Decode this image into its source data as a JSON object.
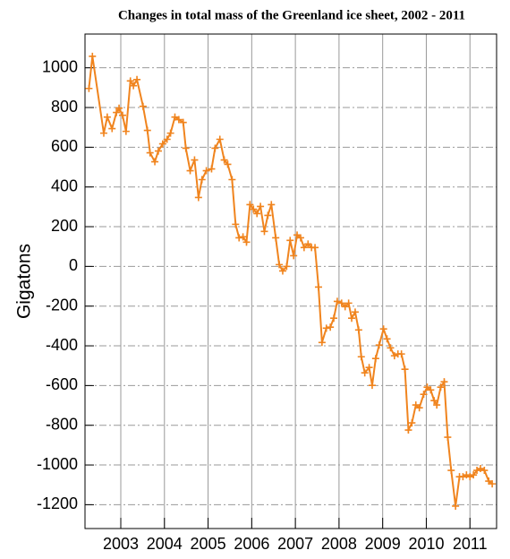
{
  "chart_data": {
    "type": "line",
    "title": "Changes in total mass of the Greenland ice sheet, 2002 - 2011",
    "y_label": "Gigatons",
    "color": "#f0841e",
    "x": [
      2002.27,
      2002.35,
      2002.61,
      2002.69,
      2002.8,
      2002.9,
      2002.96,
      2003.04,
      2003.12,
      2003.22,
      2003.29,
      2003.37,
      2003.51,
      2003.61,
      2003.67,
      2003.78,
      2003.86,
      2003.96,
      2004.06,
      2004.14,
      2004.24,
      2004.33,
      2004.43,
      2004.49,
      2004.59,
      2004.69,
      2004.78,
      2004.86,
      2004.96,
      2005.08,
      2005.16,
      2005.27,
      2005.37,
      2005.45,
      2005.55,
      2005.63,
      2005.71,
      2005.8,
      2005.88,
      2005.96,
      2006.04,
      2006.12,
      2006.2,
      2006.29,
      2006.37,
      2006.45,
      2006.55,
      2006.63,
      2006.71,
      2006.8,
      2006.88,
      2006.96,
      2007.04,
      2007.12,
      2007.2,
      2007.29,
      2007.37,
      2007.45,
      2007.53,
      2007.61,
      2007.71,
      2007.8,
      2007.88,
      2007.96,
      2008.06,
      2008.14,
      2008.22,
      2008.29,
      2008.37,
      2008.45,
      2008.51,
      2008.59,
      2008.69,
      2008.76,
      2008.84,
      2008.92,
      2009.02,
      2009.1,
      2009.18,
      2009.27,
      2009.35,
      2009.43,
      2009.51,
      2009.59,
      2009.67,
      2009.76,
      2009.84,
      2009.94,
      2010.02,
      2010.1,
      2010.18,
      2010.24,
      2010.33,
      2010.41,
      2010.49,
      2010.57,
      2010.67,
      2010.76,
      2010.84,
      2010.92,
      2011.0,
      2011.08,
      2011.16,
      2011.24,
      2011.33,
      2011.43,
      2011.51
    ],
    "values": [
      896,
      1058,
      671,
      752,
      694,
      775,
      797,
      761,
      680,
      934,
      910,
      941,
      806,
      685,
      572,
      527,
      581,
      617,
      640,
      671,
      752,
      739,
      725,
      595,
      482,
      536,
      347,
      437,
      482,
      491,
      595,
      640,
      536,
      514,
      437,
      212,
      144,
      149,
      122,
      311,
      288,
      266,
      302,
      176,
      257,
      311,
      144,
      9,
      -23,
      0,
      131,
      54,
      158,
      144,
      95,
      113,
      95,
      95,
      -104,
      -383,
      -311,
      -306,
      -261,
      -176,
      -185,
      -203,
      -185,
      -261,
      -230,
      -320,
      -455,
      -536,
      -509,
      -599,
      -464,
      -396,
      -315,
      -365,
      -410,
      -450,
      -441,
      -441,
      -518,
      -824,
      -788,
      -698,
      -712,
      -644,
      -608,
      -622,
      -676,
      -698,
      -608,
      -581,
      -860,
      -1027,
      -1207,
      -1059,
      -1059,
      -1050,
      -1059,
      -1050,
      -1027,
      -1018,
      -1027,
      -1081,
      -1095
    ],
    "xlim": [
      2002.18,
      2011.61
    ],
    "xticks": [
      2003,
      2004,
      2005,
      2006,
      2007,
      2008,
      2009,
      2010,
      2011
    ],
    "ylim": [
      -1320,
      1170
    ],
    "yticks": [
      -1200,
      -1000,
      -800,
      -600,
      -400,
      -200,
      0,
      200,
      400,
      600,
      800,
      1000
    ],
    "grid": true
  }
}
